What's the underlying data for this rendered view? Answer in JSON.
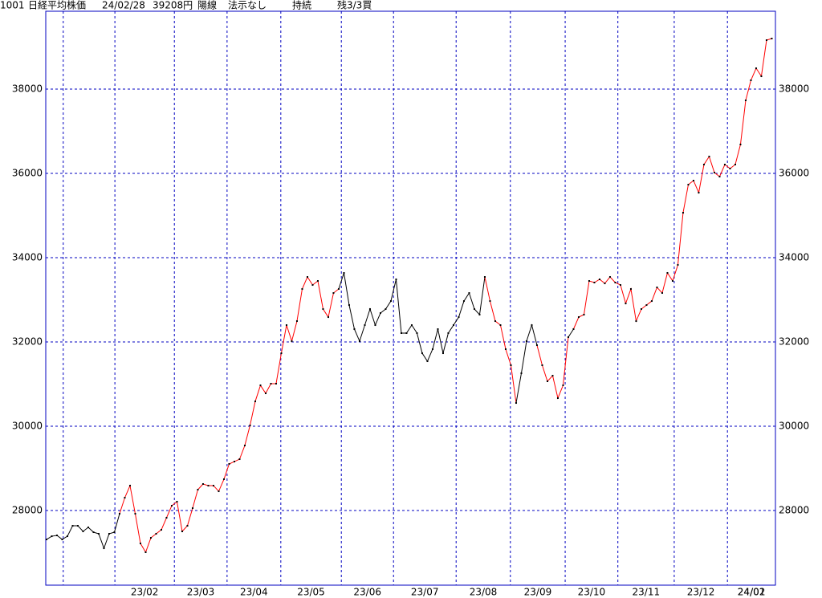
{
  "chart_data": {
    "type": "line",
    "header": [
      "1001",
      "日経平均株価",
      "24/02/28",
      "39208円",
      "陽線",
      "法示なし",
      "持続",
      "残3/3買"
    ],
    "x": [
      0,
      1,
      2,
      3,
      4,
      5,
      6,
      7,
      8,
      9,
      10,
      11,
      12,
      13,
      14,
      15,
      16,
      17,
      18,
      19,
      20,
      21,
      22,
      23,
      24,
      25,
      26,
      27,
      28,
      29,
      30,
      31,
      32,
      33,
      34,
      35,
      36,
      37,
      38,
      39,
      40,
      41,
      42,
      43,
      44,
      45,
      46,
      47,
      48,
      49,
      50,
      51,
      52,
      53,
      54,
      55,
      56,
      57,
      58,
      59,
      60,
      61,
      62,
      63,
      64,
      65,
      66,
      67,
      68,
      69,
      70,
      71,
      72,
      73,
      74,
      75,
      76,
      77,
      78,
      79,
      80,
      81,
      82,
      83,
      84,
      85,
      86,
      87,
      88,
      89,
      90,
      91,
      92,
      93,
      94,
      95,
      96,
      97,
      98,
      99,
      100,
      101,
      102,
      103,
      104,
      105,
      106,
      107,
      108,
      109,
      110,
      111,
      112,
      113,
      114,
      115,
      116,
      117,
      118,
      119,
      120,
      121,
      122,
      123,
      124,
      125,
      126,
      127,
      128,
      129,
      130,
      131,
      132,
      133,
      134,
      135,
      136,
      137,
      138,
      139
    ],
    "values": [
      27314,
      27390,
      27410,
      27314,
      27390,
      27638,
      27638,
      27505,
      27600,
      27486,
      27448,
      27105,
      27448,
      27486,
      27924,
      28305,
      28590,
      27924,
      27219,
      27010,
      27352,
      27448,
      27543,
      27829,
      28114,
      28210,
      27505,
      27638,
      28057,
      28495,
      28629,
      28590,
      28590,
      28457,
      28743,
      29105,
      29162,
      29219,
      29543,
      30019,
      30590,
      30971,
      30781,
      31010,
      31010,
      31733,
      32400,
      32019,
      32495,
      33257,
      33543,
      33352,
      33448,
      32781,
      32590,
      33162,
      33257,
      33638,
      32876,
      32305,
      32019,
      32400,
      32781,
      32400,
      32686,
      32781,
      32971,
      33486,
      32210,
      32210,
      32400,
      32210,
      31733,
      31543,
      31829,
      32305,
      31733,
      32210,
      32400,
      32590,
      32971,
      33162,
      32781,
      32648,
      33543,
      32971,
      32495,
      32400,
      31829,
      31448,
      30552,
      31257,
      32019,
      32400,
      31924,
      31448,
      31067,
      31200,
      30667,
      30971,
      32114,
      32305,
      32590,
      32648,
      33448,
      33410,
      33486,
      33390,
      33543,
      33410,
      33352,
      32914,
      33257,
      32495,
      32781,
      32876,
      32971,
      33295,
      33162,
      33638,
      33448,
      33829,
      35067,
      35733,
      35829,
      35543,
      36210,
      36400,
      36019,
      35924,
      36210,
      36114,
      36210,
      36686,
      37733,
      38210,
      38495,
      38305,
      39162,
      39200
    ],
    "segment_colors": [
      {
        "start": 0,
        "color": "#000000"
      },
      {
        "start": 14,
        "color": "#ff0000"
      },
      {
        "start": 56,
        "color": "#000000"
      },
      {
        "start": 84,
        "color": "#ff0000"
      },
      {
        "start": 90,
        "color": "#000000"
      },
      {
        "start": 94,
        "color": "#ff0000"
      },
      {
        "start": 100,
        "color": "#000000"
      },
      {
        "start": 101,
        "color": "#ff0000"
      }
    ],
    "point_color": "#000000",
    "xlim": [
      -0.15,
      139.7
    ],
    "xticks": [
      {
        "value": 3.2,
        "label": ""
      },
      {
        "value": 13.1,
        "label": "23/02"
      },
      {
        "value": 24.5,
        "label": "23/03"
      },
      {
        "value": 34.6,
        "label": "23/04"
      },
      {
        "value": 44.9,
        "label": "23/05"
      },
      {
        "value": 56.5,
        "label": "23/06"
      },
      {
        "value": 66.5,
        "label": "23/07"
      },
      {
        "value": 78.5,
        "label": "23/08"
      },
      {
        "value": 88.9,
        "label": "23/09"
      },
      {
        "value": 99.4,
        "label": "23/10"
      },
      {
        "value": 109.5,
        "label": "23/11"
      },
      {
        "value": 120.3,
        "label": "23/12"
      },
      {
        "value": 130.5,
        "label": "24/01"
      }
    ],
    "last_label": "24/02",
    "ylim": [
      26229,
      39848
    ],
    "yticks": [
      28000,
      30000,
      32000,
      34000,
      36000,
      38000
    ],
    "grid": true
  }
}
